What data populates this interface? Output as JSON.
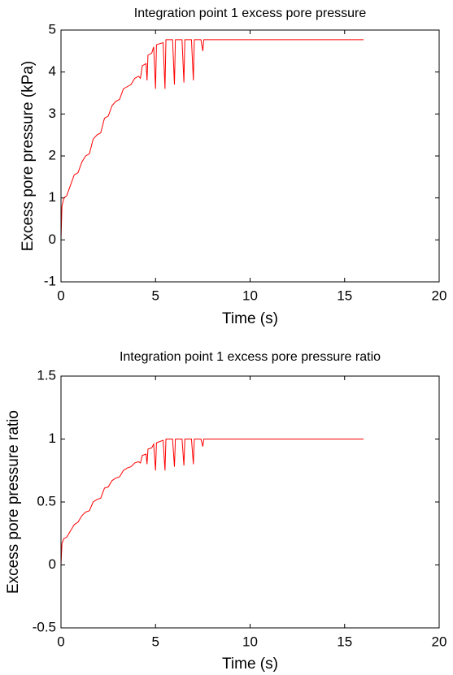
{
  "chart_data": [
    {
      "type": "line",
      "title": "Integration point 1 excess pore pressure",
      "xlabel": "Time (s)",
      "ylabel": "Excess pore pressure (kPa)",
      "xlim": [
        0,
        20
      ],
      "xticks": [
        0,
        5,
        10,
        15,
        20
      ],
      "ylim": [
        -1,
        5
      ],
      "yticks": [
        -1,
        0,
        1,
        2,
        3,
        4,
        5
      ],
      "grid": false,
      "x": [
        0,
        0.05,
        0.15,
        0.3,
        0.5,
        0.7,
        0.9,
        1.1,
        1.3,
        1.5,
        1.7,
        1.9,
        2.1,
        2.3,
        2.5,
        2.7,
        2.9,
        3.1,
        3.3,
        3.5,
        3.7,
        3.9,
        4.1,
        4.2,
        4.3,
        4.5,
        4.55,
        4.6,
        4.8,
        4.9,
        5.0,
        5.05,
        5.4,
        5.5,
        5.55,
        5.9,
        6.0,
        6.05,
        6.4,
        6.5,
        6.55,
        6.9,
        7.0,
        7.05,
        7.4,
        7.5,
        7.55,
        16
      ],
      "series": [
        {
          "color": "#ff0000",
          "values": [
            0,
            0.8,
            1.0,
            1.05,
            1.3,
            1.55,
            1.6,
            1.85,
            2.0,
            2.05,
            2.4,
            2.5,
            2.55,
            2.9,
            2.95,
            3.2,
            3.3,
            3.35,
            3.6,
            3.65,
            3.7,
            3.85,
            3.9,
            3.85,
            4.15,
            4.2,
            3.8,
            4.4,
            4.45,
            4.6,
            3.6,
            4.65,
            4.7,
            3.6,
            4.77,
            4.77,
            3.7,
            4.77,
            4.77,
            3.75,
            4.77,
            4.77,
            3.8,
            4.77,
            4.77,
            4.5,
            4.77,
            4.77
          ]
        }
      ]
    },
    {
      "type": "line",
      "title": "Integration point 1 excess pore pressure ratio",
      "xlabel": "Time (s)",
      "ylabel": "Excess pore pressure ratio",
      "xlim": [
        0,
        20
      ],
      "xticks": [
        0,
        5,
        10,
        15,
        20
      ],
      "ylim": [
        -0.5,
        1.5
      ],
      "yticks": [
        -0.5,
        0,
        0.5,
        1,
        1.5
      ],
      "grid": false,
      "x": [
        0,
        0.05,
        0.15,
        0.3,
        0.5,
        0.7,
        0.9,
        1.1,
        1.3,
        1.5,
        1.7,
        1.9,
        2.1,
        2.3,
        2.5,
        2.7,
        2.9,
        3.1,
        3.3,
        3.5,
        3.7,
        3.9,
        4.1,
        4.2,
        4.3,
        4.5,
        4.55,
        4.6,
        4.8,
        4.9,
        5.0,
        5.05,
        5.4,
        5.5,
        5.55,
        5.9,
        6.0,
        6.05,
        6.4,
        6.5,
        6.55,
        6.9,
        7.0,
        7.05,
        7.4,
        7.5,
        7.55,
        16
      ],
      "series": [
        {
          "color": "#ff0000",
          "values": [
            0,
            0.17,
            0.21,
            0.22,
            0.27,
            0.32,
            0.34,
            0.39,
            0.42,
            0.43,
            0.5,
            0.52,
            0.53,
            0.61,
            0.62,
            0.67,
            0.69,
            0.7,
            0.75,
            0.77,
            0.78,
            0.81,
            0.82,
            0.81,
            0.87,
            0.88,
            0.8,
            0.92,
            0.93,
            0.96,
            0.75,
            0.97,
            0.99,
            0.75,
            1,
            1,
            0.78,
            1,
            1,
            0.79,
            1,
            1,
            0.8,
            1,
            1,
            0.94,
            1,
            1
          ]
        }
      ]
    }
  ]
}
